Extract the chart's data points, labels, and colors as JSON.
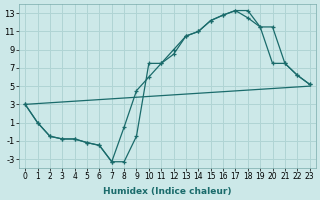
{
  "xlabel": "Humidex (Indice chaleur)",
  "bg_color": "#cce8e8",
  "grid_color": "#b0d4d4",
  "line_color": "#1a6b6b",
  "xlim": [
    -0.5,
    23.5
  ],
  "ylim": [
    -4,
    14
  ],
  "xticks": [
    0,
    1,
    2,
    3,
    4,
    5,
    6,
    7,
    8,
    9,
    10,
    11,
    12,
    13,
    14,
    15,
    16,
    17,
    18,
    19,
    20,
    21,
    22,
    23
  ],
  "yticks": [
    -3,
    -1,
    1,
    3,
    5,
    7,
    9,
    11,
    13
  ],
  "line1_x": [
    0,
    1,
    2,
    3,
    4,
    5,
    6,
    7,
    8,
    9,
    10,
    11,
    12,
    13,
    14,
    15,
    16,
    17,
    18,
    19,
    20,
    21,
    22,
    23
  ],
  "line1_y": [
    3,
    1,
    -0.5,
    -0.8,
    -0.8,
    -1.2,
    -1.5,
    -3.3,
    -3.3,
    -0.5,
    7.5,
    7.5,
    9.0,
    10.5,
    11.0,
    12.2,
    12.8,
    13.3,
    13.3,
    11.5,
    11.5,
    7.5,
    6.2,
    5.2
  ],
  "line2_x": [
    0,
    1,
    2,
    3,
    4,
    5,
    6,
    7,
    8,
    9,
    10,
    11,
    12,
    13,
    14,
    15,
    16,
    17,
    18,
    19,
    20,
    21,
    22,
    23
  ],
  "line2_y": [
    3,
    1,
    -0.5,
    -0.8,
    -0.8,
    -1.2,
    -1.5,
    -3.3,
    0.5,
    4.5,
    6.0,
    7.5,
    8.5,
    10.5,
    11.0,
    12.2,
    12.8,
    13.3,
    12.5,
    11.5,
    7.5,
    7.5,
    6.2,
    5.2
  ],
  "line3_x": [
    0,
    23
  ],
  "line3_y": [
    3,
    5
  ]
}
